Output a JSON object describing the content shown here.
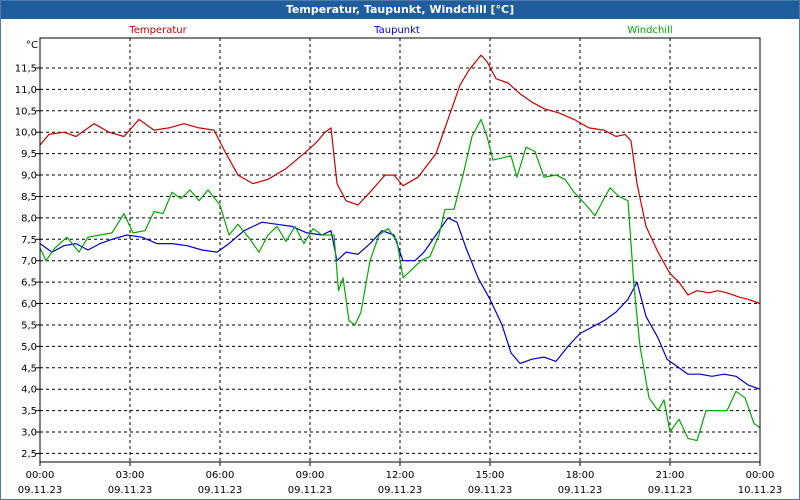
{
  "window": {
    "title": "Temperatur, Taupunkt, Windchill [°C]"
  },
  "chart_data": {
    "type": "line",
    "title": "Temperatur, Taupunkt, Windchill [°C]",
    "ylabel": "°C",
    "xlabel": "",
    "ylim": [
      2.3,
      12.2
    ],
    "xlim": [
      0,
      24
    ],
    "grid": true,
    "yticks": [
      "2,5",
      "3,0",
      "3,5",
      "4,0",
      "4,5",
      "5,0",
      "5,5",
      "6,0",
      "6,5",
      "7,0",
      "7,5",
      "8,0",
      "8,5",
      "9,0",
      "9,5",
      "10,0",
      "10,5",
      "11,0",
      "11,5"
    ],
    "xticks": [
      {
        "x": 0,
        "time": "00:00",
        "date": "09.11.23"
      },
      {
        "x": 3,
        "time": "03:00",
        "date": "09.11.23"
      },
      {
        "x": 6,
        "time": "06:00",
        "date": "09.11.23"
      },
      {
        "x": 9,
        "time": "09:00",
        "date": "09.11.23"
      },
      {
        "x": 12,
        "time": "12:00",
        "date": "09.11.23"
      },
      {
        "x": 15,
        "time": "15:00",
        "date": "09.11.23"
      },
      {
        "x": 18,
        "time": "18:00",
        "date": "09.11.23"
      },
      {
        "x": 21,
        "time": "21:00",
        "date": "09.11.23"
      },
      {
        "x": 24,
        "time": "00:00",
        "date": "10.11.23"
      }
    ],
    "series": [
      {
        "name": "Temperatur",
        "color": "#cc0000",
        "points": [
          [
            0,
            9.7
          ],
          [
            0.3,
            9.95
          ],
          [
            0.8,
            10.0
          ],
          [
            1.2,
            9.9
          ],
          [
            1.8,
            10.2
          ],
          [
            2.3,
            10.0
          ],
          [
            2.8,
            9.9
          ],
          [
            3.3,
            10.3
          ],
          [
            3.8,
            10.05
          ],
          [
            4.3,
            10.1
          ],
          [
            4.8,
            10.2
          ],
          [
            5.3,
            10.1
          ],
          [
            5.8,
            10.05
          ],
          [
            6.2,
            9.5
          ],
          [
            6.6,
            9.0
          ],
          [
            7.1,
            8.8
          ],
          [
            7.6,
            8.9
          ],
          [
            8.2,
            9.15
          ],
          [
            8.8,
            9.5
          ],
          [
            9.2,
            9.75
          ],
          [
            9.5,
            10.0
          ],
          [
            9.7,
            10.1
          ],
          [
            9.9,
            8.8
          ],
          [
            10.2,
            8.4
          ],
          [
            10.6,
            8.3
          ],
          [
            11.0,
            8.6
          ],
          [
            11.5,
            9.0
          ],
          [
            11.8,
            9.0
          ],
          [
            12.1,
            8.75
          ],
          [
            12.6,
            8.95
          ],
          [
            13.2,
            9.5
          ],
          [
            13.6,
            10.3
          ],
          [
            14.0,
            11.1
          ],
          [
            14.3,
            11.45
          ],
          [
            14.7,
            11.8
          ],
          [
            14.9,
            11.65
          ],
          [
            15.2,
            11.25
          ],
          [
            15.6,
            11.15
          ],
          [
            16.0,
            10.9
          ],
          [
            16.4,
            10.7
          ],
          [
            16.8,
            10.55
          ],
          [
            17.3,
            10.45
          ],
          [
            17.8,
            10.3
          ],
          [
            18.3,
            10.1
          ],
          [
            18.8,
            10.05
          ],
          [
            19.2,
            9.9
          ],
          [
            19.5,
            9.95
          ],
          [
            19.7,
            9.8
          ],
          [
            19.9,
            8.8
          ],
          [
            20.2,
            7.8
          ],
          [
            20.6,
            7.2
          ],
          [
            21.0,
            6.7
          ],
          [
            21.3,
            6.5
          ],
          [
            21.6,
            6.2
          ],
          [
            21.9,
            6.3
          ],
          [
            22.3,
            6.25
          ],
          [
            22.6,
            6.3
          ],
          [
            22.9,
            6.25
          ],
          [
            23.3,
            6.15
          ],
          [
            23.6,
            6.1
          ],
          [
            24.0,
            6.0
          ]
        ]
      },
      {
        "name": "Taupunkt",
        "color": "#0000cc",
        "points": [
          [
            0,
            7.4
          ],
          [
            0.4,
            7.2
          ],
          [
            0.8,
            7.35
          ],
          [
            1.2,
            7.4
          ],
          [
            1.6,
            7.25
          ],
          [
            2.0,
            7.4
          ],
          [
            2.4,
            7.5
          ],
          [
            2.9,
            7.6
          ],
          [
            3.4,
            7.55
          ],
          [
            3.9,
            7.4
          ],
          [
            4.4,
            7.4
          ],
          [
            4.9,
            7.35
          ],
          [
            5.4,
            7.25
          ],
          [
            5.9,
            7.2
          ],
          [
            6.3,
            7.4
          ],
          [
            6.8,
            7.7
          ],
          [
            7.4,
            7.9
          ],
          [
            7.9,
            7.85
          ],
          [
            8.4,
            7.8
          ],
          [
            8.9,
            7.65
          ],
          [
            9.4,
            7.6
          ],
          [
            9.7,
            7.7
          ],
          [
            9.9,
            7.0
          ],
          [
            10.2,
            7.2
          ],
          [
            10.6,
            7.15
          ],
          [
            11.0,
            7.4
          ],
          [
            11.4,
            7.7
          ],
          [
            11.8,
            7.6
          ],
          [
            12.1,
            7.0
          ],
          [
            12.5,
            7.0
          ],
          [
            12.8,
            7.2
          ],
          [
            13.2,
            7.6
          ],
          [
            13.6,
            8.0
          ],
          [
            13.9,
            7.9
          ],
          [
            14.2,
            7.3
          ],
          [
            14.6,
            6.6
          ],
          [
            15.0,
            6.1
          ],
          [
            15.4,
            5.5
          ],
          [
            15.7,
            4.85
          ],
          [
            16.0,
            4.6
          ],
          [
            16.4,
            4.7
          ],
          [
            16.8,
            4.75
          ],
          [
            17.2,
            4.65
          ],
          [
            17.6,
            5.0
          ],
          [
            18.0,
            5.3
          ],
          [
            18.4,
            5.45
          ],
          [
            18.8,
            5.6
          ],
          [
            19.2,
            5.8
          ],
          [
            19.6,
            6.1
          ],
          [
            19.9,
            6.5
          ],
          [
            20.2,
            5.7
          ],
          [
            20.6,
            5.2
          ],
          [
            20.9,
            4.7
          ],
          [
            21.3,
            4.5
          ],
          [
            21.6,
            4.35
          ],
          [
            22.0,
            4.35
          ],
          [
            22.4,
            4.3
          ],
          [
            22.8,
            4.35
          ],
          [
            23.2,
            4.3
          ],
          [
            23.6,
            4.1
          ],
          [
            24.0,
            4.0
          ]
        ]
      },
      {
        "name": "Windchill",
        "color": "#00aa00",
        "points": [
          [
            0,
            7.3
          ],
          [
            0.2,
            7.0
          ],
          [
            0.5,
            7.3
          ],
          [
            0.9,
            7.55
          ],
          [
            1.3,
            7.2
          ],
          [
            1.6,
            7.55
          ],
          [
            2.0,
            7.6
          ],
          [
            2.4,
            7.65
          ],
          [
            2.8,
            8.1
          ],
          [
            3.1,
            7.65
          ],
          [
            3.5,
            7.7
          ],
          [
            3.8,
            8.15
          ],
          [
            4.1,
            8.1
          ],
          [
            4.4,
            8.6
          ],
          [
            4.7,
            8.45
          ],
          [
            5.0,
            8.65
          ],
          [
            5.3,
            8.4
          ],
          [
            5.6,
            8.65
          ],
          [
            6.0,
            8.3
          ],
          [
            6.3,
            7.6
          ],
          [
            6.6,
            7.85
          ],
          [
            7.0,
            7.5
          ],
          [
            7.3,
            7.2
          ],
          [
            7.6,
            7.6
          ],
          [
            7.9,
            7.8
          ],
          [
            8.2,
            7.45
          ],
          [
            8.5,
            7.8
          ],
          [
            8.8,
            7.4
          ],
          [
            9.1,
            7.75
          ],
          [
            9.4,
            7.6
          ],
          [
            9.8,
            7.6
          ],
          [
            9.95,
            6.3
          ],
          [
            10.1,
            6.6
          ],
          [
            10.3,
            5.6
          ],
          [
            10.5,
            5.5
          ],
          [
            10.7,
            5.8
          ],
          [
            11.0,
            7.0
          ],
          [
            11.3,
            7.6
          ],
          [
            11.6,
            7.75
          ],
          [
            11.9,
            7.45
          ],
          [
            12.1,
            6.6
          ],
          [
            12.4,
            6.8
          ],
          [
            12.7,
            7.0
          ],
          [
            13.0,
            7.1
          ],
          [
            13.3,
            7.6
          ],
          [
            13.5,
            8.2
          ],
          [
            13.8,
            8.2
          ],
          [
            14.1,
            9.0
          ],
          [
            14.4,
            9.9
          ],
          [
            14.7,
            10.3
          ],
          [
            14.9,
            9.9
          ],
          [
            15.1,
            9.35
          ],
          [
            15.4,
            9.4
          ],
          [
            15.7,
            9.45
          ],
          [
            15.9,
            8.95
          ],
          [
            16.2,
            9.65
          ],
          [
            16.5,
            9.55
          ],
          [
            16.8,
            8.95
          ],
          [
            17.2,
            9.0
          ],
          [
            17.5,
            8.9
          ],
          [
            17.8,
            8.6
          ],
          [
            18.2,
            8.3
          ],
          [
            18.5,
            8.05
          ],
          [
            18.8,
            8.45
          ],
          [
            19.0,
            8.7
          ],
          [
            19.3,
            8.5
          ],
          [
            19.6,
            8.4
          ],
          [
            19.8,
            6.4
          ],
          [
            20.0,
            5.0
          ],
          [
            20.3,
            3.8
          ],
          [
            20.6,
            3.5
          ],
          [
            20.8,
            3.75
          ],
          [
            21.0,
            3.0
          ],
          [
            21.3,
            3.3
          ],
          [
            21.6,
            2.85
          ],
          [
            21.9,
            2.8
          ],
          [
            22.2,
            3.5
          ],
          [
            22.6,
            3.5
          ],
          [
            22.9,
            3.5
          ],
          [
            23.2,
            3.95
          ],
          [
            23.5,
            3.8
          ],
          [
            23.8,
            3.2
          ],
          [
            24.0,
            3.1
          ]
        ]
      }
    ]
  }
}
